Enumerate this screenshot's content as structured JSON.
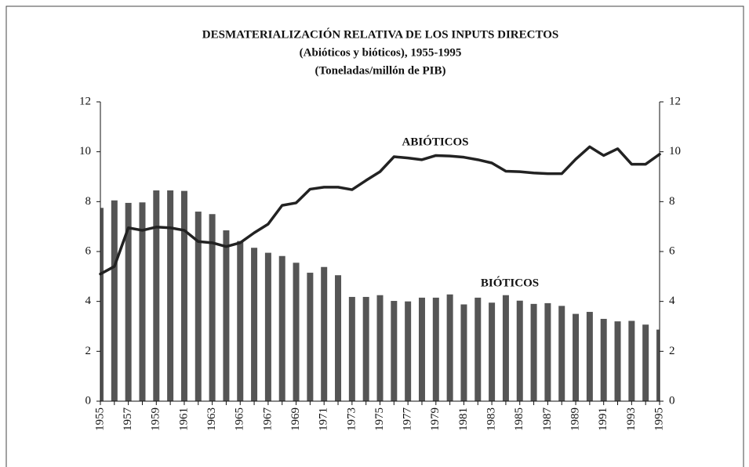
{
  "chart_data": {
    "type": "bar_line",
    "title": "DESMATERIALIZACIÓN RELATIVA DE LOS INPUTS DIRECTOS",
    "subtitle": [
      "(Abióticos y bióticos), 1955-1995",
      "(Toneladas/millón de PIB)"
    ],
    "categories": [
      "1955",
      null,
      "1957",
      null,
      "1959",
      null,
      "1961",
      null,
      "1963",
      null,
      "1965",
      null,
      "1967",
      null,
      "1969",
      null,
      "1971",
      null,
      "1973",
      null,
      "1975",
      null,
      "1977",
      null,
      "1979",
      null,
      "1981",
      null,
      "1983",
      null,
      "1985",
      null,
      "1987",
      null,
      "1989",
      null,
      "1991",
      null,
      "1993",
      null,
      "1995"
    ],
    "series": [
      {
        "name": "BIÓTICOS",
        "type": "bar",
        "color": "#555555",
        "values": [
          7.75,
          8.05,
          7.95,
          7.97,
          8.45,
          8.45,
          8.43,
          7.6,
          7.5,
          6.85,
          6.42,
          6.15,
          5.95,
          5.82,
          5.55,
          5.15,
          5.38,
          5.05,
          4.18,
          4.18,
          4.25,
          4.02,
          4.0,
          4.15,
          4.15,
          4.28,
          3.88,
          4.15,
          3.95,
          4.25,
          4.03,
          3.9,
          3.93,
          3.82,
          3.5,
          3.58,
          3.3,
          3.2,
          3.22,
          3.07,
          2.87
        ]
      },
      {
        "name": "ABIÓTICOS",
        "type": "line",
        "color": "#222222",
        "values": [
          5.1,
          5.4,
          6.95,
          6.85,
          6.98,
          6.95,
          6.85,
          6.4,
          6.35,
          6.2,
          6.35,
          6.75,
          7.1,
          7.85,
          7.95,
          8.5,
          8.58,
          8.58,
          8.48,
          8.85,
          9.2,
          9.8,
          9.75,
          9.68,
          9.85,
          9.83,
          9.78,
          9.68,
          9.55,
          9.22,
          9.2,
          9.15,
          9.12,
          9.12,
          9.7,
          10.2,
          9.85,
          10.12,
          9.5,
          9.5,
          9.9
        ]
      }
    ],
    "ylim": [
      0,
      12
    ],
    "yticks": [
      0,
      2,
      4,
      6,
      8,
      10,
      12
    ],
    "y2lim": [
      0,
      12
    ],
    "y2ticks": [
      0,
      2,
      4,
      6,
      8,
      10,
      12
    ]
  }
}
